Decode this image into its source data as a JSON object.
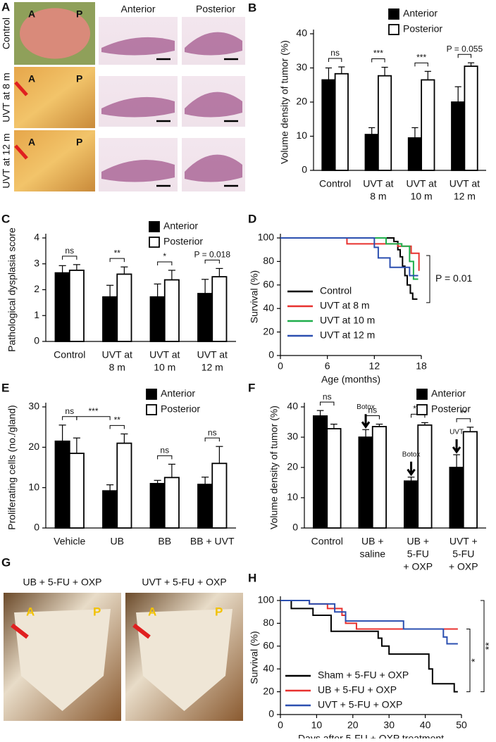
{
  "panel_a": {
    "letter": "A",
    "columns": [
      "Anterior",
      "Posterior"
    ],
    "rows": [
      "Control",
      "UVT at 8 m",
      "UVT at 12 m"
    ],
    "photo_marks": [
      "A",
      "P"
    ]
  },
  "panel_g": {
    "letter": "G",
    "titles": [
      "UB + 5-FU + OXP",
      "UVT + 5-FU + OXP"
    ],
    "photo_marks": [
      "A",
      "P"
    ]
  },
  "chart_data": [
    {
      "type": "bar",
      "panel": "B",
      "ylabel": "Volume density of tumor (%)",
      "categories": [
        [
          "Control"
        ],
        [
          "UVT at",
          "8 m"
        ],
        [
          "UVT at",
          "10 m"
        ],
        [
          "UVT at",
          "12 m"
        ]
      ],
      "series": [
        {
          "name": "Anterior",
          "color": "#000000",
          "values": [
            26.5,
            10.5,
            9.5,
            20
          ],
          "errors": [
            3.5,
            2,
            3,
            4.5
          ]
        },
        {
          "name": "Posterior",
          "color": "#ffffff",
          "values": [
            28.3,
            27.7,
            26.5,
            30.5
          ],
          "errors": [
            2,
            2.5,
            2.5,
            1
          ]
        }
      ],
      "ylim": [
        0,
        40
      ],
      "yticks": [
        0,
        10,
        20,
        30,
        40
      ],
      "significance": [
        "ns",
        "***",
        "***",
        "P = 0.055"
      ]
    },
    {
      "type": "bar",
      "panel": "C",
      "ylabel": "Pathological dysplasia score",
      "categories": [
        [
          "Control"
        ],
        [
          "UVT at",
          "8 m"
        ],
        [
          "UVT at",
          "10 m"
        ],
        [
          "UVT at",
          "12 m"
        ]
      ],
      "series": [
        {
          "name": "Anterior",
          "color": "#000000",
          "values": [
            2.65,
            1.72,
            1.72,
            1.85
          ],
          "errors": [
            0.28,
            0.45,
            0.5,
            0.55
          ]
        },
        {
          "name": "Posterior",
          "color": "#ffffff",
          "values": [
            2.75,
            2.6,
            2.38,
            2.5
          ],
          "errors": [
            0.22,
            0.28,
            0.37,
            0.32
          ]
        }
      ],
      "ylim": [
        0,
        4
      ],
      "yticks": [
        0,
        1,
        2,
        3,
        4
      ],
      "significance": [
        "ns",
        "**",
        "*",
        "P = 0.018"
      ]
    },
    {
      "type": "line",
      "panel": "D",
      "ylabel": "Survival (%)",
      "xlabel": "Age (months)",
      "xlim": [
        0,
        18
      ],
      "xticks": [
        0,
        6,
        12,
        18
      ],
      "ylim": [
        0,
        100
      ],
      "yticks": [
        0,
        20,
        40,
        60,
        80,
        100
      ],
      "series": [
        {
          "name": "Control",
          "color": "#000000",
          "x": [
            0,
            14.5,
            14.5,
            15,
            15,
            15.3,
            15.3,
            15.6,
            15.6,
            15.9,
            15.9,
            16.2,
            16.2,
            16.6,
            16.6,
            16.9,
            16.9,
            17.5
          ],
          "values": [
            100,
            100,
            97,
            97,
            90,
            90,
            84,
            84,
            76,
            76,
            68,
            68,
            60,
            60,
            53,
            53,
            48,
            48
          ]
        },
        {
          "name": "UVT at 8 m",
          "color": "#e8312f",
          "x": [
            0,
            8.5,
            8.5,
            15,
            15,
            16.7,
            16.7,
            17.7,
            17.7
          ],
          "values": [
            100,
            100,
            95,
            95,
            93,
            93,
            87,
            87,
            72
          ]
        },
        {
          "name": "UVT at 10 m",
          "color": "#1fae4b",
          "x": [
            0,
            13.5,
            13.5,
            15.5,
            15.5,
            16.5,
            16.5,
            17,
            17,
            17.6
          ],
          "values": [
            100,
            100,
            95,
            95,
            93,
            93,
            80,
            80,
            65,
            65
          ]
        },
        {
          "name": "UVT at 12 m",
          "color": "#2b4fb0",
          "x": [
            0,
            12,
            12,
            12.5,
            12.5,
            14,
            14,
            16.5,
            16.5,
            17.6
          ],
          "values": [
            100,
            100,
            92,
            92,
            83,
            83,
            75,
            75,
            68,
            68
          ]
        }
      ],
      "p_value": "P = 0.01"
    },
    {
      "type": "bar",
      "panel": "E",
      "ylabel": "Proliferating cells (no./gland)",
      "categories": [
        [
          "Vehicle"
        ],
        [
          "UB"
        ],
        [
          "BB"
        ],
        [
          "BB + UVT"
        ]
      ],
      "series": [
        {
          "name": "Anterior",
          "color": "#000000",
          "values": [
            21.5,
            9.2,
            11,
            10.8
          ],
          "errors": [
            4,
            1.5,
            0.8,
            1.8
          ]
        },
        {
          "name": "Posterior",
          "color": "#ffffff",
          "values": [
            18.5,
            21,
            12.5,
            16
          ],
          "errors": [
            3.8,
            2.3,
            3.3,
            4.2
          ]
        }
      ],
      "ylim": [
        0,
        30
      ],
      "yticks": [
        0,
        10,
        20,
        30
      ],
      "significance": [
        "ns",
        "**",
        "ns",
        "ns"
      ],
      "vehicle_vs_ub": "***"
    },
    {
      "type": "bar",
      "panel": "F",
      "ylabel": "Volume density of tumor (%)",
      "categories": [
        [
          "Control"
        ],
        [
          "UB +",
          "saline"
        ],
        [
          "UB +",
          "5-FU",
          "+ OXP"
        ],
        [
          "UVT +",
          "5-FU",
          "+ OXP"
        ]
      ],
      "series": [
        {
          "name": "Anterior",
          "color": "#000000",
          "values": [
            37,
            30,
            15.5,
            20
          ],
          "errors": [
            1.8,
            2.5,
            1.3,
            4.2
          ]
        },
        {
          "name": "Posterior",
          "color": "#ffffff",
          "values": [
            32.8,
            33.5,
            34,
            31.8
          ],
          "errors": [
            1.5,
            0.8,
            0.8,
            1.5
          ]
        }
      ],
      "ylim": [
        0,
        40
      ],
      "yticks": [
        0,
        10,
        20,
        30,
        40
      ],
      "significance": [
        "ns",
        "ns",
        "***",
        "**"
      ],
      "arrow_labels": [
        null,
        "Botox",
        "Botox",
        "UVT"
      ]
    },
    {
      "type": "line",
      "panel": "H",
      "ylabel": "Survival (%)",
      "xlabel": "Days after 5-FU + OXP treatment",
      "xlim": [
        0,
        50
      ],
      "xticks": [
        0,
        10,
        20,
        30,
        40,
        50
      ],
      "ylim": [
        0,
        100
      ],
      "yticks": [
        0,
        20,
        40,
        60,
        80,
        100
      ],
      "series": [
        {
          "name": "Sham + 5-FU + OXP",
          "color": "#000000",
          "x": [
            0,
            3,
            3,
            9,
            9,
            14,
            14,
            27,
            27,
            28,
            28,
            30,
            30,
            41,
            41,
            42,
            42,
            48,
            48,
            49
          ],
          "values": [
            100,
            100,
            93,
            93,
            87,
            87,
            73,
            73,
            67,
            67,
            60,
            60,
            53,
            53,
            40,
            40,
            27,
            27,
            20,
            20
          ]
        },
        {
          "name": "UB + 5-FU + OXP",
          "color": "#e8312f",
          "x": [
            0,
            8,
            8,
            13,
            13,
            17,
            17,
            18,
            18,
            21,
            21,
            49
          ],
          "values": [
            100,
            100,
            97,
            97,
            93,
            93,
            87,
            87,
            80,
            80,
            75,
            75
          ]
        },
        {
          "name": "UVT + 5-FU + OXP",
          "color": "#2b4fb0",
          "x": [
            0,
            8,
            8,
            15,
            15,
            18,
            18,
            34,
            34,
            45,
            45,
            46,
            46,
            49
          ],
          "values": [
            100,
            100,
            97,
            97,
            90,
            90,
            82,
            82,
            75,
            75,
            68,
            68,
            62,
            62
          ]
        }
      ],
      "significance": [
        "*",
        "**"
      ]
    }
  ]
}
